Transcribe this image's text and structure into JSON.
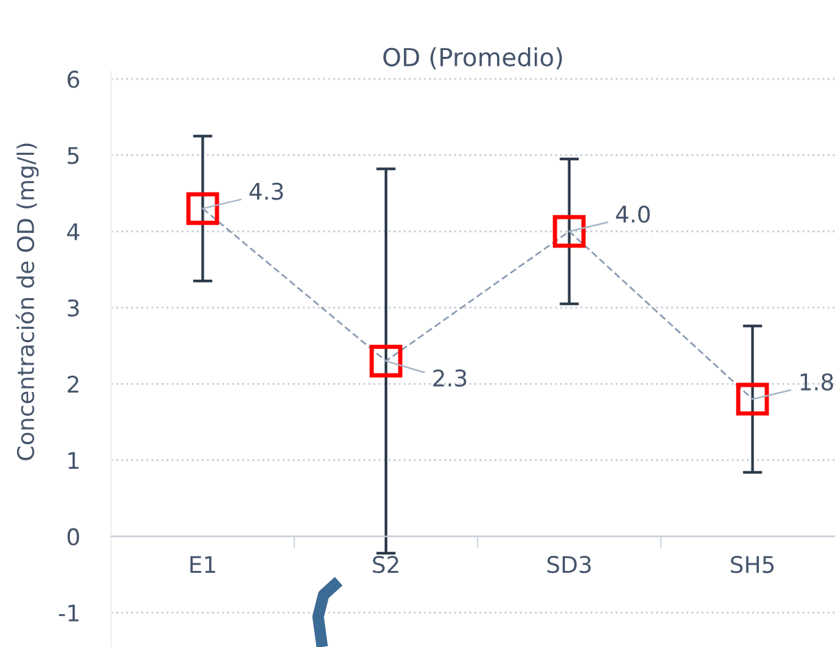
{
  "chart_data": {
    "type": "line",
    "title": "OD (Promedio)",
    "ylabel": "Concentración de OD (mg/l)",
    "categories": [
      "E1",
      "S2",
      "SD3",
      "SH5"
    ],
    "series": [
      {
        "color": "#ff0000",
        "values": [
          4.3,
          2.3,
          4.0,
          1.8
        ],
        "errors": [
          0.95,
          2.52,
          0.95,
          0.96
        ],
        "value_labels": [
          "4.3",
          "2.3",
          "4.0",
          "1.8"
        ]
      }
    ],
    "ylim": [
      -1.45,
      6.1
    ],
    "yticks": [
      -1,
      0,
      1,
      2,
      3,
      4,
      5,
      6
    ],
    "grid": "y",
    "marker": "square",
    "line_style": "dashed",
    "legend": false
  }
}
